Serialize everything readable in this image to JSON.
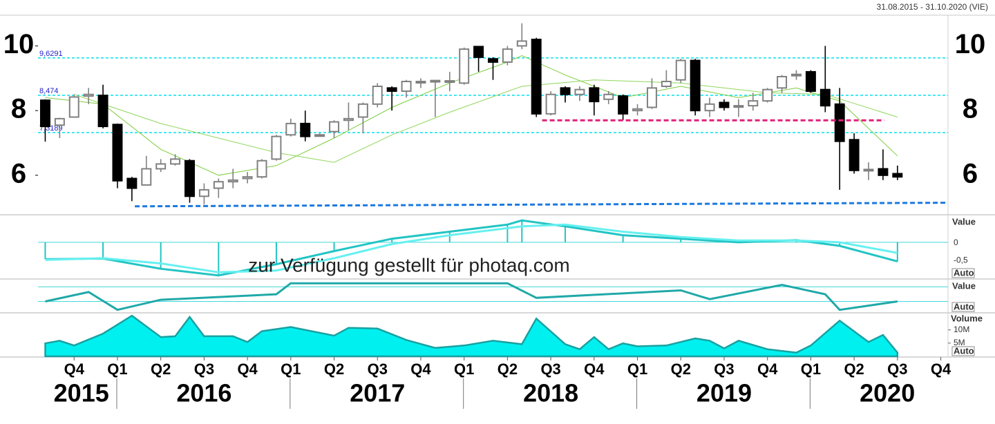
{
  "header": {
    "date_range": "31.08.2015 - 31.10.2020 (VIE)"
  },
  "watermark": "zur Verfügung gestellt für photaq.com",
  "x_axis": {
    "xlim": [
      -0.5,
      62.5
    ],
    "quarter_ticks": [
      {
        "value": 2,
        "label": "Q4"
      },
      {
        "value": 5,
        "label": "Q1"
      },
      {
        "value": 8,
        "label": "Q2"
      },
      {
        "value": 11,
        "label": "Q3"
      },
      {
        "value": 14,
        "label": "Q4"
      },
      {
        "value": 17,
        "label": "Q1"
      },
      {
        "value": 20,
        "label": "Q2"
      },
      {
        "value": 23,
        "label": "Q3"
      },
      {
        "value": 26,
        "label": "Q4"
      },
      {
        "value": 29,
        "label": "Q1"
      },
      {
        "value": 32,
        "label": "Q2"
      },
      {
        "value": 35,
        "label": "Q3"
      },
      {
        "value": 38,
        "label": "Q4"
      },
      {
        "value": 41,
        "label": "Q1"
      },
      {
        "value": 44,
        "label": "Q2"
      },
      {
        "value": 47,
        "label": "Q3"
      },
      {
        "value": 50,
        "label": "Q4"
      },
      {
        "value": 53,
        "label": "Q1"
      },
      {
        "value": 56,
        "label": "Q2"
      },
      {
        "value": 59,
        "label": "Q3"
      },
      {
        "value": 62,
        "label": "Q4"
      }
    ],
    "year_ticks": [
      {
        "value": 2.5,
        "label": "2015"
      },
      {
        "value": 11,
        "label": "2016"
      },
      {
        "value": 23,
        "label": "2017"
      },
      {
        "value": 35,
        "label": "2018"
      },
      {
        "value": 47,
        "label": "2019"
      },
      {
        "value": 58.3,
        "label": "2020"
      }
    ]
  },
  "chart_data": [
    {
      "type": "candlestick",
      "ylim": [
        4.8,
        10.95
      ],
      "yticks": [
        6,
        8,
        10
      ],
      "open": [
        8.32,
        7.55,
        7.8,
        8.45,
        8.47,
        7.57,
        5.9,
        5.7,
        6.2,
        6.35,
        6.45,
        5.35,
        5.6,
        5.8,
        5.9,
        5.95,
        6.5,
        7.25,
        7.6,
        7.25,
        7.35,
        7.7,
        7.8,
        8.2,
        8.7,
        8.6,
        8.88,
        8.92,
        8.9,
        8.85,
        9.98,
        9.6,
        9.5,
        10.0,
        10.2,
        7.9,
        8.7,
        8.5,
        8.7,
        8.35,
        8.45,
        8.0,
        8.1,
        8.75,
        8.95,
        9.55,
        8.0,
        8.25,
        8.12,
        8.15,
        8.3,
        8.7,
        9.08,
        9.2,
        8.65,
        8.2,
        7.1,
        6.15,
        6.2,
        6.05
      ],
      "high": [
        8.35,
        7.78,
        8.5,
        8.7,
        8.8,
        7.6,
        5.95,
        6.6,
        6.5,
        6.65,
        6.5,
        5.75,
        5.9,
        6.2,
        6.1,
        6.5,
        7.25,
        7.75,
        8.0,
        7.3,
        7.7,
        8.25,
        8.25,
        8.85,
        8.75,
        8.95,
        9.0,
        8.95,
        9.2,
        9.95,
        10.0,
        9.65,
        10.0,
        10.7,
        10.25,
        8.6,
        8.75,
        8.75,
        8.8,
        8.6,
        8.5,
        8.2,
        9.0,
        9.25,
        9.6,
        9.6,
        8.4,
        8.35,
        8.35,
        8.55,
        8.7,
        9.1,
        9.25,
        9.25,
        10.0,
        8.7,
        7.3,
        6.4,
        6.8,
        6.3
      ],
      "low": [
        7.04,
        7.15,
        7.8,
        8.2,
        7.45,
        5.6,
        5.2,
        5.7,
        6.1,
        6.3,
        5.15,
        5.1,
        5.3,
        5.6,
        5.75,
        5.9,
        6.45,
        7.2,
        7.05,
        7.2,
        7.15,
        7.4,
        7.3,
        8.1,
        8.0,
        8.4,
        8.7,
        7.8,
        8.6,
        8.8,
        9.2,
        8.95,
        9.4,
        9.9,
        7.8,
        7.85,
        8.25,
        8.3,
        7.85,
        8.2,
        7.7,
        7.85,
        8.05,
        8.7,
        8.85,
        7.85,
        7.8,
        8.0,
        7.8,
        8.0,
        8.25,
        8.55,
        8.95,
        8.55,
        7.95,
        5.55,
        6.05,
        5.85,
        5.85,
        5.85
      ],
      "close": [
        7.51,
        7.75,
        8.42,
        8.5,
        7.51,
        5.83,
        5.6,
        6.2,
        6.35,
        6.5,
        5.35,
        5.55,
        5.8,
        5.85,
        5.95,
        6.45,
        7.2,
        7.6,
        7.2,
        7.25,
        7.65,
        7.75,
        8.2,
        8.75,
        8.6,
        8.9,
        8.9,
        8.93,
        8.92,
        9.9,
        9.65,
        9.5,
        9.9,
        10.15,
        7.9,
        8.5,
        8.5,
        8.65,
        8.28,
        8.5,
        7.9,
        8.05,
        8.7,
        8.9,
        9.55,
        8.0,
        8.2,
        8.1,
        8.15,
        8.3,
        8.65,
        9.05,
        9.12,
        8.6,
        8.15,
        7.05,
        6.15,
        6.18,
        6.0,
        5.95
      ],
      "up_color": "#ffffff",
      "up_edge": "#808080",
      "down_color": "#000000",
      "levels": [
        {
          "value": 9.6291,
          "label": "9,6291"
        },
        {
          "value": 8.474,
          "label": "8,474"
        },
        {
          "value": 7.3189,
          "label": "7,3189"
        }
      ],
      "level_color": "#00e0ee",
      "trend_lines": [
        {
          "color": "#e0207a",
          "x": [
            34.4,
            58.1
          ],
          "values": [
            7.7,
            7.7
          ]
        },
        {
          "color": "#1a78e0",
          "x": [
            6.2,
            62.5
          ],
          "values": [
            5.04,
            5.15
          ]
        }
      ],
      "moving_averages": [
        {
          "color": "#7ccd3c",
          "x": [
            0,
            4,
            8,
            12,
            16,
            20,
            24,
            28,
            32,
            33,
            36,
            40,
            44,
            48,
            52,
            55,
            59
          ],
          "values": [
            8.4,
            8.2,
            6.8,
            6.0,
            6.3,
            7.15,
            8.1,
            8.85,
            9.5,
            9.7,
            9.1,
            8.4,
            8.75,
            8.4,
            8.7,
            8.3,
            6.6
          ]
        },
        {
          "color": "#8ed65a",
          "x": [
            2,
            8,
            12,
            16,
            20,
            24,
            28,
            33,
            38,
            44,
            50,
            54,
            59
          ],
          "values": [
            8.5,
            7.6,
            7.15,
            6.7,
            6.4,
            7.25,
            7.95,
            8.75,
            8.95,
            8.85,
            8.55,
            8.5,
            7.8
          ]
        }
      ]
    },
    {
      "type": "line",
      "ylabel": "Value",
      "scale_mode": "Auto",
      "ylim": [
        -1.02,
        0.76
      ],
      "yticks": [
        0,
        {
          "value": -0.5,
          "label": "-0,5"
        }
      ],
      "series": [
        {
          "color": "#22c4c4",
          "x": [
            0,
            4,
            8,
            12,
            16,
            20,
            24,
            28,
            32,
            33,
            36,
            40,
            44,
            48,
            52,
            55,
            59
          ],
          "values": [
            -0.48,
            -0.46,
            -0.75,
            -0.94,
            -0.62,
            -0.25,
            0.1,
            0.3,
            0.5,
            0.62,
            0.45,
            0.2,
            0.1,
            0.0,
            0.06,
            -0.1,
            -0.54
          ]
        },
        {
          "color": "#66f0f0",
          "x": [
            0,
            4,
            8,
            12,
            16,
            20,
            24,
            28,
            32,
            33,
            36,
            40,
            44,
            48,
            52,
            55,
            59
          ],
          "values": [
            -0.5,
            -0.45,
            -0.6,
            -0.85,
            -0.8,
            -0.45,
            -0.05,
            0.2,
            0.4,
            0.45,
            0.5,
            0.3,
            0.15,
            0.05,
            0.05,
            0.0,
            -0.3
          ]
        }
      ]
    },
    {
      "type": "line",
      "ylabel": "Value",
      "scale_mode": "Auto",
      "ylim": [
        0,
        100
      ],
      "ref_lines": [
        78,
        33
      ],
      "ref_color": "#40d8d8",
      "series": [
        {
          "color": "#20a8a8",
          "x": [
            0,
            3,
            5,
            8,
            16,
            17,
            32,
            34,
            44,
            46,
            51,
            54,
            55,
            59
          ],
          "values": [
            33,
            62,
            7,
            38,
            55,
            89,
            89,
            44,
            67,
            40,
            84,
            55,
            7,
            33
          ]
        }
      ]
    },
    {
      "type": "area",
      "ylabel": "Volume",
      "scale_mode": "Auto",
      "ylim": [
        0,
        16200000
      ],
      "yticks": [
        {
          "value": 10000000,
          "label": "10M"
        },
        {
          "value": 5000000,
          "label": "5M"
        }
      ],
      "color": "#00f0f0",
      "edge": "#1aa0a0",
      "x": [
        0,
        1,
        2,
        4,
        6,
        8,
        9,
        10,
        11,
        13,
        14,
        15,
        17,
        20,
        21,
        23,
        25,
        27,
        29,
        31,
        33,
        34,
        36,
        37,
        38,
        39,
        40,
        41,
        43,
        45,
        46,
        47,
        48,
        50,
        52,
        53,
        55,
        57,
        58,
        59
      ],
      "values": [
        4900000,
        5900000,
        4100000,
        8600000,
        15400000,
        7300000,
        7600000,
        14900000,
        7600000,
        7600000,
        5400000,
        9500000,
        11100000,
        7800000,
        10800000,
        10500000,
        6200000,
        3200000,
        4100000,
        5900000,
        4600000,
        14300000,
        4600000,
        2700000,
        7300000,
        2700000,
        4900000,
        3800000,
        4100000,
        6800000,
        5900000,
        3000000,
        5900000,
        2700000,
        1400000,
        4100000,
        13500000,
        5400000,
        8100000,
        1400000
      ]
    }
  ]
}
